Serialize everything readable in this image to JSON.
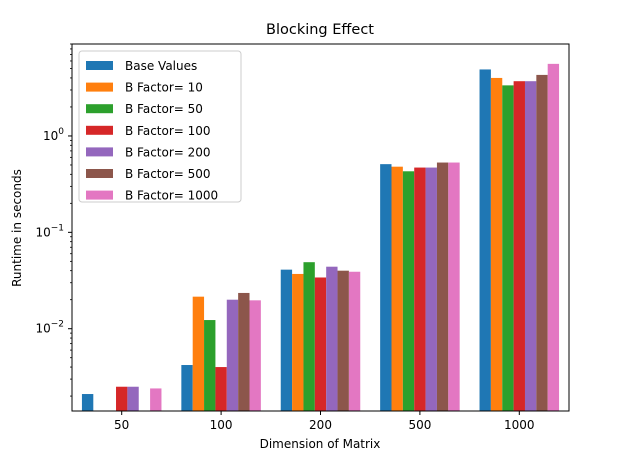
{
  "chart_data": {
    "type": "bar",
    "title": "Blocking Effect",
    "xlabel": "Dimension of Matrix",
    "ylabel": "Runtime in seconds",
    "yscale": "log",
    "ylim": [
      0.0014,
      9
    ],
    "y_ticks": [
      {
        "value": 0.01,
        "base": "10",
        "exp": "−2"
      },
      {
        "value": 0.1,
        "base": "10",
        "exp": "−1"
      },
      {
        "value": 1,
        "base": "10",
        "exp": "0"
      }
    ],
    "categories": [
      "50",
      "100",
      "200",
      "500",
      "1000"
    ],
    "legend_position": "upper-left",
    "grid": false,
    "series": [
      {
        "name": "Base Values",
        "color": "#1f77b4",
        "values": [
          0.0021,
          0.0042,
          0.041,
          0.51,
          4.9
        ]
      },
      {
        "name": "B Factor= 10",
        "color": "#ff7f0e",
        "values": [
          null,
          0.0215,
          0.037,
          0.48,
          4.0
        ]
      },
      {
        "name": "B Factor= 50",
        "color": "#2ca02c",
        "values": [
          null,
          0.0123,
          0.049,
          0.43,
          3.35
        ]
      },
      {
        "name": "B Factor= 100",
        "color": "#d62728",
        "values": [
          0.0025,
          0.004,
          0.034,
          0.47,
          3.7
        ]
      },
      {
        "name": "B Factor= 200",
        "color": "#9467bd",
        "values": [
          0.0025,
          0.02,
          0.044,
          0.47,
          3.7
        ]
      },
      {
        "name": "B Factor= 500",
        "color": "#8c564b",
        "values": [
          null,
          0.0235,
          0.04,
          0.53,
          4.3
        ]
      },
      {
        "name": "B Factor= 1000",
        "color": "#e377c2",
        "values": [
          0.0024,
          0.0197,
          0.039,
          0.53,
          5.6
        ]
      }
    ]
  }
}
